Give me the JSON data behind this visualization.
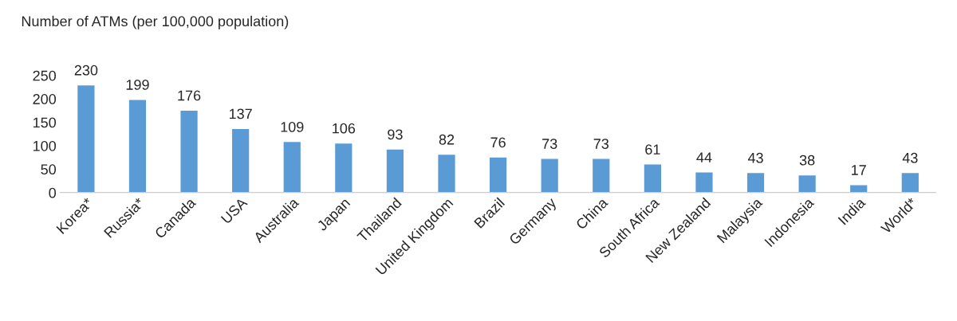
{
  "chart_data": {
    "type": "bar",
    "title": "Number of ATMs (per 100,000 population)",
    "categories": [
      "Korea*",
      "Russia*",
      "Canada",
      "USA",
      "Australia",
      "Japan",
      "Thailand",
      "United Kingdom",
      "Brazil",
      "Germany",
      "China",
      "South Africa",
      "New Zealand",
      "Malaysia",
      "Indonesia",
      "India",
      "World*"
    ],
    "values": [
      230,
      199,
      176,
      137,
      109,
      106,
      93,
      82,
      76,
      73,
      73,
      61,
      44,
      43,
      38,
      17,
      43
    ],
    "color": "#5b9bd5",
    "ylim": [
      0,
      250
    ],
    "yticks": [
      0,
      50,
      100,
      150,
      200,
      250
    ],
    "data_labels": true,
    "grid": false,
    "legend": false
  }
}
